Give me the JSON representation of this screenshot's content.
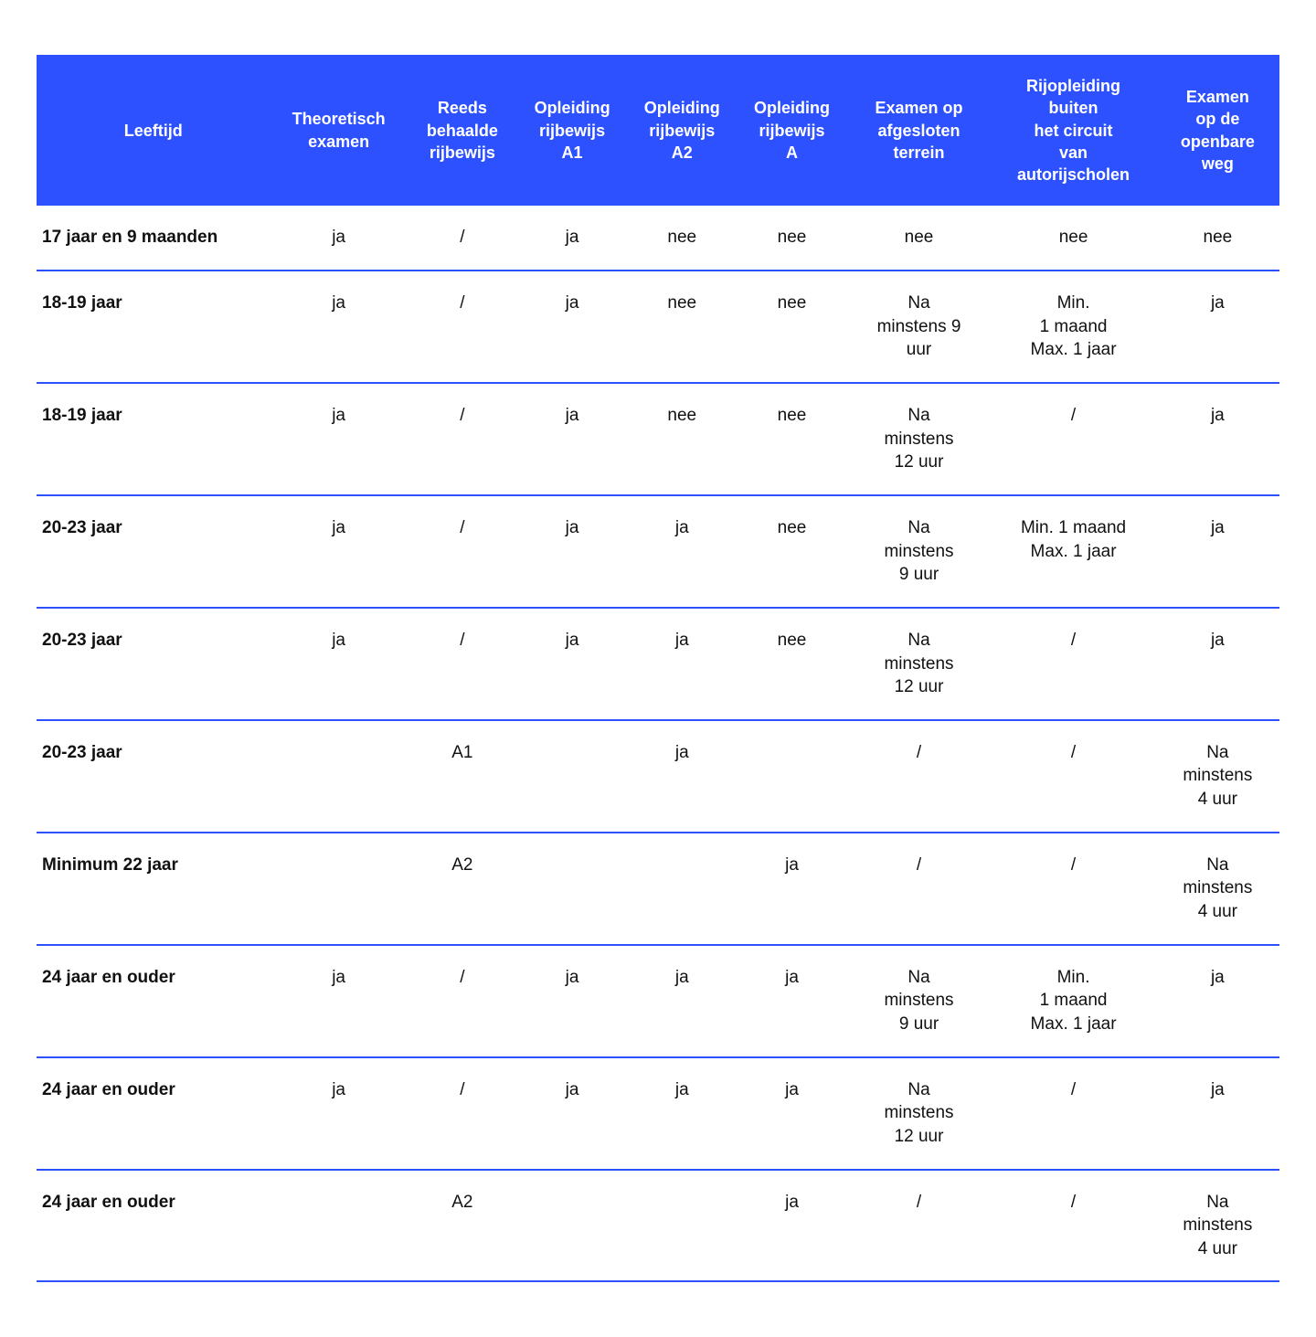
{
  "table": {
    "header_bg": "#2e51ff",
    "header_text_color": "#ffffff",
    "divider_color": "#2e51ff",
    "body_text_color": "#111111",
    "header_font_size_pt": 14,
    "body_font_size_pt": 14,
    "columns": [
      "Leeftijd",
      "Theoretisch\nexamen",
      "Reeds\nbehaalde\nrijbewijs",
      "Opleiding\nrijbewijs\nA1",
      "Opleiding\nrijbewijs\nA2",
      "Opleiding\nrijbewijs\nA",
      "Examen op\nafgesloten\nterrein",
      "Rijopleiding\nbuiten\nhet circuit\nvan\nautorijscholen",
      "Examen\nop de\nopenbare\nweg"
    ],
    "rows": [
      {
        "age": "17 jaar en 9 maanden",
        "cells": [
          "ja",
          "/",
          "ja",
          "nee",
          "nee",
          "nee",
          "nee",
          "nee"
        ]
      },
      {
        "age": "18-19 jaar",
        "cells": [
          "ja",
          "/",
          "ja",
          "nee",
          "nee",
          "Na\nminstens 9\nuur",
          "Min.\n1 maand\nMax. 1 jaar",
          "ja"
        ]
      },
      {
        "age": "18-19 jaar",
        "cells": [
          "ja",
          "/",
          "ja",
          "nee",
          "nee",
          "Na\nminstens\n12 uur",
          "/",
          "ja"
        ]
      },
      {
        "age": "20-23 jaar",
        "cells": [
          "ja",
          "/",
          "ja",
          "ja",
          "nee",
          "Na\nminstens\n9 uur",
          "Min. 1 maand\nMax. 1 jaar",
          "ja"
        ]
      },
      {
        "age": "20-23 jaar",
        "cells": [
          "ja",
          "/",
          "ja",
          "ja",
          "nee",
          "Na\nminstens\n12 uur",
          "/",
          "ja"
        ]
      },
      {
        "age": "20-23 jaar",
        "cells": [
          "",
          "A1",
          "",
          "ja",
          "",
          "/",
          "/",
          "Na\nminstens\n4 uur"
        ]
      },
      {
        "age": "Minimum 22 jaar",
        "cells": [
          "",
          "A2",
          "",
          "",
          "ja",
          "/",
          "/",
          "Na\nminstens\n4 uur"
        ]
      },
      {
        "age": "24 jaar en ouder",
        "cells": [
          "ja",
          "/",
          "ja",
          "ja",
          "ja",
          "Na\nminstens\n9 uur",
          "Min.\n1 maand\nMax. 1 jaar",
          "ja"
        ]
      },
      {
        "age": "24 jaar en ouder",
        "cells": [
          "ja",
          "/",
          "ja",
          "ja",
          "ja",
          "Na\nminstens\n12 uur",
          "/",
          "ja"
        ]
      },
      {
        "age": "24 jaar en ouder",
        "cells": [
          "",
          "A2",
          "",
          "",
          "ja",
          "/",
          "/",
          "Na\nminstens\n4 uur"
        ]
      }
    ]
  }
}
